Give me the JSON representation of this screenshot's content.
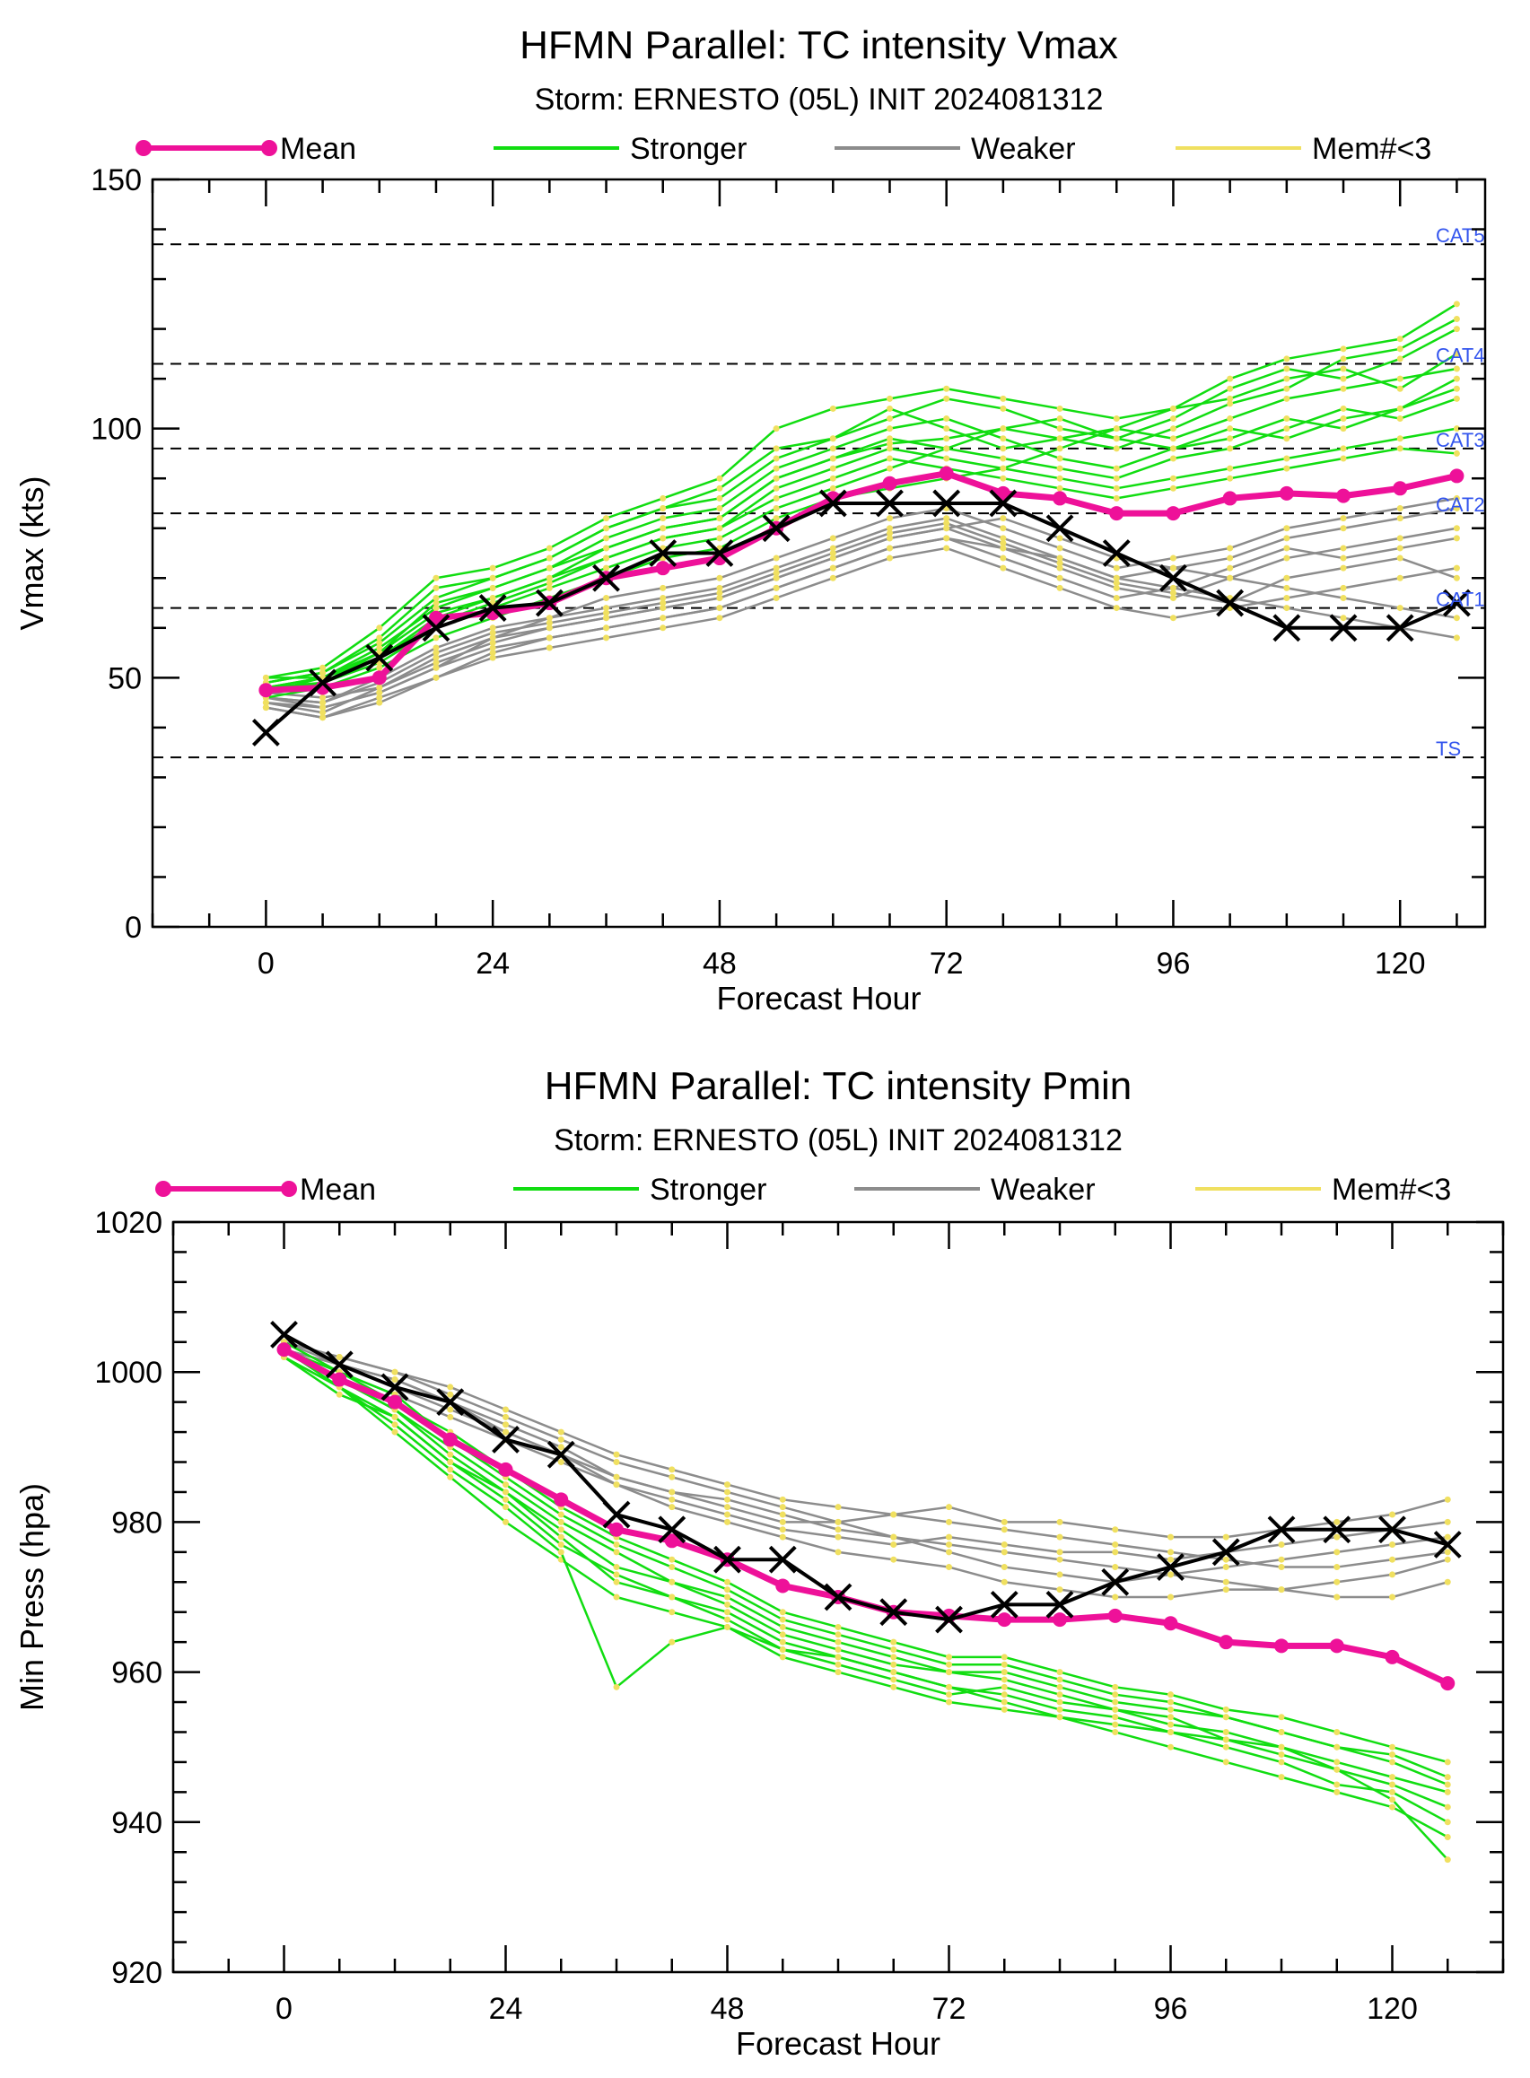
{
  "chart_data": [
    {
      "type": "line",
      "title": "HFMN Parallel: TC intensity Vmax",
      "subtitle": "Storm: ERNESTO (05L) INIT 2024081312",
      "xlabel": "Forecast Hour",
      "ylabel": "Vmax (kts)",
      "xlim": [
        -12,
        129
      ],
      "ylim": [
        0,
        150
      ],
      "xticks": [
        0,
        24,
        48,
        72,
        96,
        120
      ],
      "yticks": [
        0,
        50,
        100,
        150
      ],
      "legend": {
        "placement": "top",
        "entries": [
          {
            "label": "Mean",
            "color": "#ee1199"
          },
          {
            "label": "Stronger",
            "color": "#11dd11"
          },
          {
            "label": "Weaker",
            "color": "#8c8c8c"
          },
          {
            "label": "Mem#<3",
            "color": "#f0e060"
          }
        ]
      },
      "reference_lines": [
        {
          "label": "TS",
          "y": 34
        },
        {
          "label": "CAT1",
          "y": 64
        },
        {
          "label": "CAT2",
          "y": 83
        },
        {
          "label": "CAT3",
          "y": 96
        },
        {
          "label": "CAT4",
          "y": 113
        },
        {
          "label": "CAT5",
          "y": 137
        }
      ],
      "x": [
        0,
        6,
        12,
        18,
        24,
        30,
        36,
        42,
        48,
        54,
        60,
        66,
        72,
        78,
        84,
        90,
        96,
        102,
        108,
        114,
        120,
        126
      ],
      "mean": [
        47.5,
        48,
        50,
        62,
        63,
        65,
        70,
        72,
        74,
        80,
        86,
        89,
        91,
        87,
        86,
        83,
        83,
        86,
        87,
        86.5,
        88,
        90.5
      ],
      "best_track": [
        39,
        49,
        54,
        60,
        64,
        65,
        70,
        75,
        75,
        80,
        85,
        85,
        85,
        85,
        80,
        75,
        70,
        65,
        60,
        60,
        60,
        65
      ],
      "members_stronger": [
        [
          50,
          50,
          55,
          65,
          68,
          72,
          76,
          80,
          82,
          90,
          94,
          97,
          98,
          100,
          98,
          96,
          100,
          105,
          108,
          114,
          116,
          122
        ],
        [
          49,
          51,
          58,
          68,
          70,
          74,
          80,
          84,
          88,
          96,
          98,
          102,
          106,
          104,
          100,
          98,
          102,
          108,
          112,
          110,
          114,
          120
        ],
        [
          48,
          50,
          54,
          62,
          66,
          70,
          74,
          78,
          80,
          88,
          92,
          96,
          94,
          92,
          96,
          100,
          98,
          102,
          106,
          108,
          110,
          112
        ],
        [
          47,
          49,
          53,
          60,
          64,
          68,
          72,
          76,
          78,
          84,
          88,
          92,
          96,
          94,
          92,
          90,
          94,
          96,
          100,
          104,
          102,
          106
        ],
        [
          50,
          52,
          60,
          70,
          72,
          76,
          82,
          86,
          90,
          100,
          104,
          106,
          108,
          106,
          104,
          102,
          104,
          110,
          114,
          116,
          118,
          125
        ],
        [
          48,
          50,
          56,
          64,
          68,
          72,
          78,
          82,
          84,
          92,
          96,
          100,
          102,
          98,
          94,
          92,
          96,
          100,
          98,
          102,
          104,
          108
        ],
        [
          46,
          48,
          52,
          58,
          62,
          66,
          70,
          74,
          76,
          82,
          86,
          88,
          90,
          92,
          90,
          88,
          90,
          92,
          94,
          96,
          98,
          100
        ],
        [
          49,
          51,
          57,
          66,
          70,
          74,
          80,
          84,
          86,
          94,
          98,
          104,
          100,
          96,
          98,
          100,
          104,
          106,
          110,
          112,
          108,
          115
        ],
        [
          48,
          49,
          55,
          63,
          66,
          70,
          76,
          80,
          82,
          90,
          94,
          98,
          96,
          100,
          102,
          98,
          96,
          98,
          102,
          100,
          104,
          110
        ],
        [
          47,
          50,
          54,
          61,
          65,
          69,
          74,
          78,
          80,
          86,
          90,
          94,
          92,
          90,
          88,
          86,
          88,
          90,
          92,
          94,
          96,
          95
        ]
      ],
      "members_weaker": [
        [
          46,
          45,
          50,
          56,
          60,
          62,
          64,
          66,
          68,
          72,
          76,
          80,
          82,
          78,
          74,
          70,
          72,
          74,
          78,
          80,
          82,
          84
        ],
        [
          47,
          46,
          48,
          54,
          58,
          60,
          62,
          64,
          66,
          70,
          74,
          78,
          80,
          76,
          72,
          68,
          66,
          70,
          74,
          76,
          78,
          80
        ],
        [
          45,
          44,
          47,
          52,
          56,
          58,
          60,
          62,
          64,
          68,
          72,
          76,
          78,
          74,
          70,
          66,
          68,
          72,
          76,
          74,
          76,
          78
        ],
        [
          46,
          45,
          49,
          55,
          59,
          61,
          63,
          65,
          67,
          71,
          75,
          79,
          81,
          77,
          73,
          69,
          67,
          65,
          70,
          72,
          74,
          70
        ],
        [
          44,
          42,
          46,
          50,
          54,
          56,
          58,
          60,
          62,
          66,
          70,
          74,
          76,
          72,
          68,
          64,
          62,
          64,
          66,
          68,
          70,
          72
        ],
        [
          45,
          43,
          48,
          53,
          57,
          60,
          62,
          64,
          66,
          70,
          74,
          78,
          80,
          82,
          78,
          74,
          72,
          70,
          68,
          66,
          64,
          62
        ],
        [
          46,
          44,
          47,
          52,
          58,
          62,
          66,
          68,
          70,
          74,
          78,
          82,
          84,
          80,
          76,
          72,
          74,
          76,
          80,
          82,
          84,
          86
        ],
        [
          44,
          42,
          45,
          50,
          55,
          58,
          60,
          62,
          64,
          68,
          72,
          76,
          78,
          76,
          74,
          70,
          68,
          66,
          64,
          62,
          60,
          58
        ]
      ]
    },
    {
      "type": "line",
      "title": "HFMN Parallel: TC intensity Pmin",
      "subtitle": "Storm: ERNESTO (05L) INIT 2024081312",
      "xlabel": "Forecast Hour",
      "ylabel": "Min Press (hpa)",
      "xlim": [
        -12,
        132
      ],
      "ylim": [
        920,
        1020
      ],
      "xticks": [
        0,
        24,
        48,
        72,
        96,
        120
      ],
      "yticks": [
        920,
        940,
        960,
        980,
        1000,
        1020
      ],
      "legend": {
        "placement": "top",
        "entries": [
          {
            "label": "Mean",
            "color": "#ee1199"
          },
          {
            "label": "Stronger",
            "color": "#11dd11"
          },
          {
            "label": "Weaker",
            "color": "#8c8c8c"
          },
          {
            "label": "Mem#<3",
            "color": "#f0e060"
          }
        ]
      },
      "x": [
        0,
        6,
        12,
        18,
        24,
        30,
        36,
        42,
        48,
        54,
        60,
        66,
        72,
        78,
        84,
        90,
        96,
        102,
        108,
        114,
        120,
        126
      ],
      "mean": [
        1003,
        999,
        996,
        991,
        987,
        983,
        979,
        977.5,
        975,
        971.5,
        970,
        968,
        967.5,
        967,
        967,
        967.5,
        966.5,
        964,
        963.5,
        963.5,
        962,
        958.5
      ],
      "best_track": [
        1005,
        1001,
        998,
        996,
        991,
        989,
        981,
        979,
        975,
        975,
        970,
        968,
        967,
        969,
        969,
        972,
        974,
        976,
        979,
        979,
        979,
        977
      ],
      "members_stronger": [
        [
          1003,
          998,
          992,
          986,
          980,
          975,
          970,
          968,
          966,
          962,
          960,
          958,
          956,
          955,
          954,
          952,
          950,
          948,
          946,
          944,
          942,
          938
        ],
        [
          1002,
          997,
          994,
          988,
          984,
          978,
          972,
          970,
          968,
          964,
          962,
          960,
          958,
          956,
          954,
          953,
          952,
          950,
          948,
          945,
          944,
          940
        ],
        [
          1003,
          999,
          995,
          990,
          985,
          980,
          976,
          972,
          970,
          966,
          964,
          962,
          960,
          960,
          958,
          956,
          955,
          954,
          952,
          950,
          948,
          945
        ],
        [
          1004,
          1000,
          996,
          992,
          987,
          982,
          978,
          975,
          972,
          968,
          966,
          964,
          962,
          962,
          960,
          958,
          957,
          955,
          954,
          952,
          950,
          948
        ],
        [
          1002,
          998,
          993,
          987,
          982,
          976,
          958,
          964,
          966,
          963,
          961,
          959,
          957,
          958,
          956,
          955,
          954,
          951,
          950,
          947,
          943,
          935
        ],
        [
          1003,
          999,
          995,
          989,
          984,
          979,
          974,
          972,
          969,
          965,
          963,
          961,
          960,
          959,
          957,
          955,
          953,
          952,
          950,
          948,
          946,
          944
        ],
        [
          1003,
          1000,
          997,
          991,
          986,
          981,
          977,
          974,
          971,
          967,
          965,
          963,
          961,
          961,
          959,
          957,
          956,
          954,
          952,
          950,
          949,
          946
        ],
        [
          1002,
          998,
          994,
          988,
          983,
          977,
          973,
          970,
          967,
          963,
          962,
          960,
          958,
          957,
          955,
          954,
          952,
          951,
          949,
          947,
          945,
          942
        ]
      ],
      "members_weaker": [
        [
          1004,
          1001,
          999,
          996,
          993,
          990,
          986,
          984,
          982,
          980,
          980,
          981,
          982,
          980,
          980,
          979,
          978,
          978,
          979,
          980,
          981,
          983
        ],
        [
          1003,
          1001,
          998,
          995,
          992,
          989,
          985,
          983,
          981,
          979,
          978,
          977,
          978,
          977,
          976,
          976,
          975,
          976,
          977,
          978,
          979,
          980
        ],
        [
          1004,
          1002,
          1000,
          997,
          994,
          991,
          988,
          986,
          984,
          982,
          980,
          978,
          976,
          974,
          973,
          972,
          973,
          974,
          975,
          976,
          977,
          978
        ],
        [
          1003,
          1000,
          997,
          994,
          991,
          988,
          985,
          982,
          980,
          978,
          976,
          975,
          974,
          972,
          971,
          970,
          970,
          971,
          971,
          972,
          973,
          975
        ],
        [
          1003,
          1001,
          999,
          996,
          992,
          989,
          986,
          984,
          983,
          981,
          979,
          978,
          977,
          976,
          975,
          974,
          973,
          972,
          971,
          970,
          970,
          972
        ],
        [
          1004,
          1002,
          1000,
          998,
          995,
          992,
          989,
          987,
          985,
          983,
          982,
          981,
          980,
          979,
          978,
          977,
          976,
          975,
          974,
          974,
          975,
          976
        ]
      ]
    }
  ]
}
